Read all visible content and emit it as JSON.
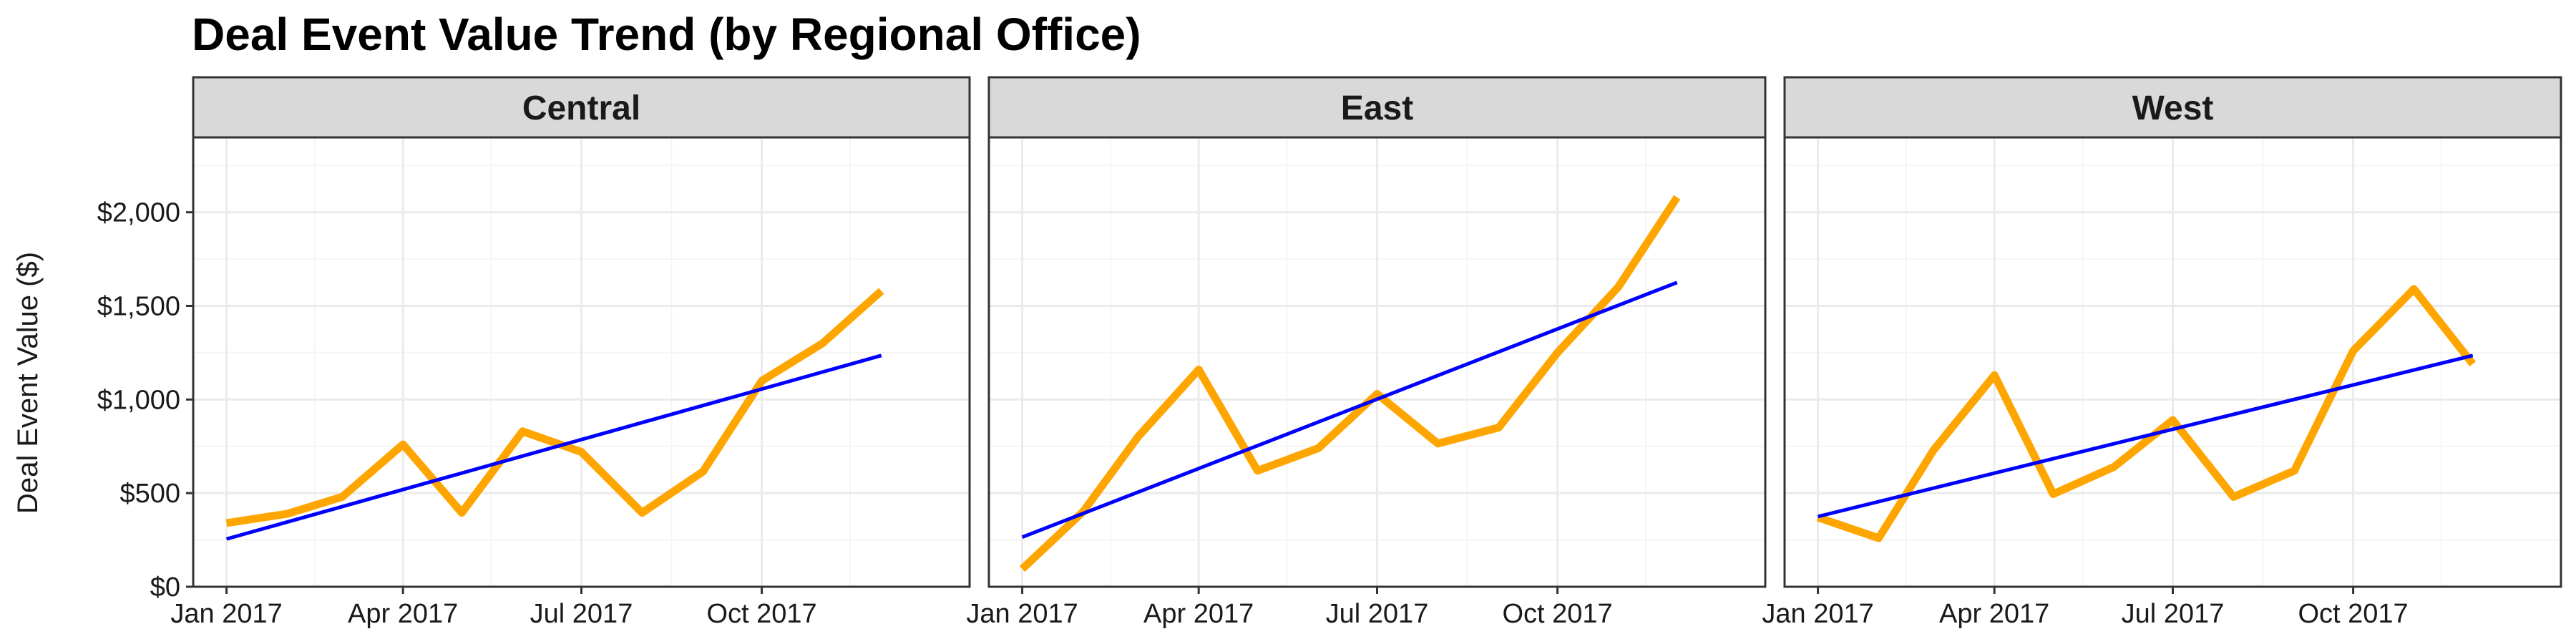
{
  "chart_data": {
    "type": "line",
    "title": "Deal Event Value Trend (by Regional Office)",
    "xlabel": "",
    "ylabel": "Deal Event Value ($)",
    "ylim": [
      0,
      2400
    ],
    "y_ticks": [
      0,
      500,
      1000,
      1500,
      2000
    ],
    "y_tick_labels": [
      "$0",
      "$500",
      "$1,000",
      "$1,500",
      "$2,000"
    ],
    "x_ticks": [
      "2017-01-01",
      "2017-04-01",
      "2017-07-01",
      "2017-10-01"
    ],
    "x_tick_labels": [
      "Jan 2017",
      "Apr 2017",
      "Jul 2017",
      "Oct 2017"
    ],
    "x_range": [
      "2016-12-15",
      "2018-01-15"
    ],
    "grid": true,
    "colors": {
      "value": "#FFA500",
      "trend": "#0000FF",
      "strip_fill": "#D9D9D9",
      "panel_border": "#333333",
      "grid_major": "#EBEBEB",
      "grid_minor": "#F5F5F5"
    },
    "facets": [
      {
        "label": "Central",
        "x": [
          "2017-01-01",
          "2017-02-01",
          "2017-03-01",
          "2017-04-01",
          "2017-05-01",
          "2017-06-01",
          "2017-07-01",
          "2017-08-01",
          "2017-09-01",
          "2017-10-01",
          "2017-11-01",
          "2017-12-01"
        ],
        "values": [
          340,
          390,
          480,
          760,
          395,
          830,
          720,
          395,
          615,
          1100,
          1300,
          1580
        ],
        "trend": [
          255,
          1235
        ]
      },
      {
        "label": "East",
        "x": [
          "2017-01-01",
          "2017-02-01",
          "2017-03-01",
          "2017-04-01",
          "2017-05-01",
          "2017-06-01",
          "2017-07-01",
          "2017-08-01",
          "2017-09-01",
          "2017-10-01",
          "2017-11-01",
          "2017-12-01"
        ],
        "values": [
          95,
          400,
          800,
          1160,
          620,
          740,
          1030,
          765,
          850,
          1250,
          1600,
          2080
        ],
        "trend": [
          265,
          1625
        ]
      },
      {
        "label": "West",
        "x": [
          "2017-01-01",
          "2017-02-01",
          "2017-03-01",
          "2017-04-01",
          "2017-05-01",
          "2017-06-01",
          "2017-07-01",
          "2017-08-01",
          "2017-09-01",
          "2017-10-01",
          "2017-11-01",
          "2017-12-01"
        ],
        "values": [
          370,
          260,
          730,
          1130,
          495,
          640,
          890,
          480,
          620,
          1260,
          1590,
          1190
        ],
        "trend": [
          375,
          1235
        ]
      }
    ]
  }
}
